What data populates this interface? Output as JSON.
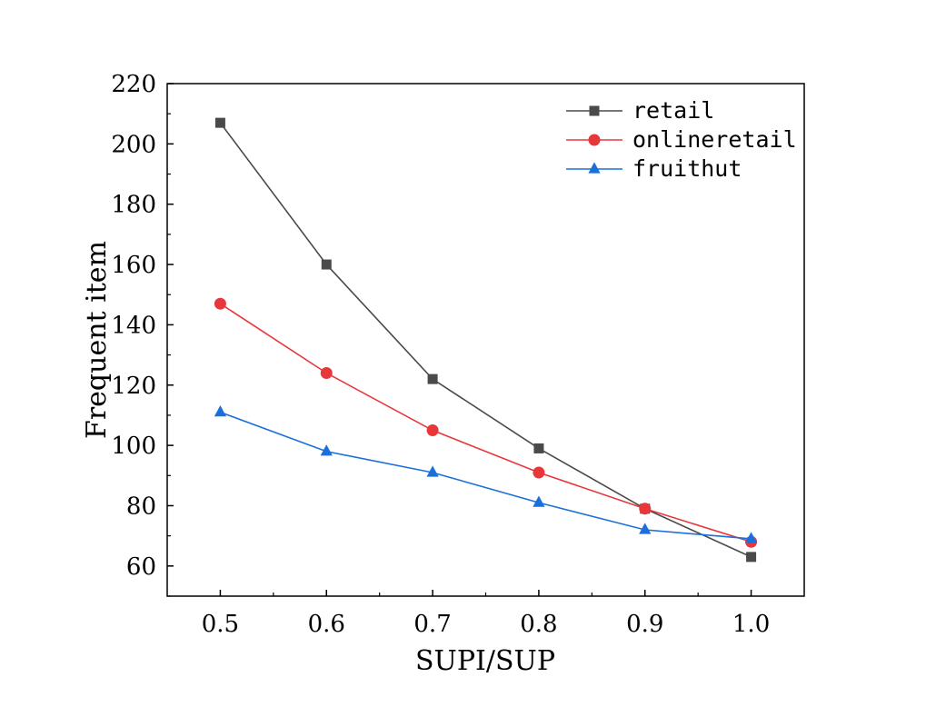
{
  "chart_data": {
    "type": "line",
    "title": "",
    "xlabel": "SUPI/SUP",
    "ylabel": "Frequent item",
    "x": [
      0.5,
      0.6,
      0.7,
      0.8,
      0.9,
      1.0
    ],
    "x_tick_labels": [
      "0.5",
      "0.6",
      "0.7",
      "0.8",
      "0.9",
      "1.0"
    ],
    "xlim": [
      0.45,
      1.05
    ],
    "ylim": [
      50,
      220
    ],
    "y_ticks": [
      60,
      80,
      100,
      120,
      140,
      160,
      180,
      200,
      220
    ],
    "y_tick_labels": [
      "60",
      "80",
      "100",
      "120",
      "140",
      "160",
      "180",
      "200",
      "220"
    ],
    "grid": false,
    "legend_position": "top-right",
    "series": [
      {
        "name": "retail",
        "values": [
          207,
          160,
          122,
          99,
          79,
          63
        ],
        "color": "#4a4a4a",
        "marker": "square"
      },
      {
        "name": "onlineretail",
        "values": [
          147,
          124,
          105,
          91,
          79,
          68
        ],
        "color": "#e8373b",
        "marker": "circle"
      },
      {
        "name": "fruithut",
        "values": [
          111,
          98,
          91,
          81,
          72,
          69
        ],
        "color": "#1a6fdb",
        "marker": "triangle"
      }
    ]
  }
}
